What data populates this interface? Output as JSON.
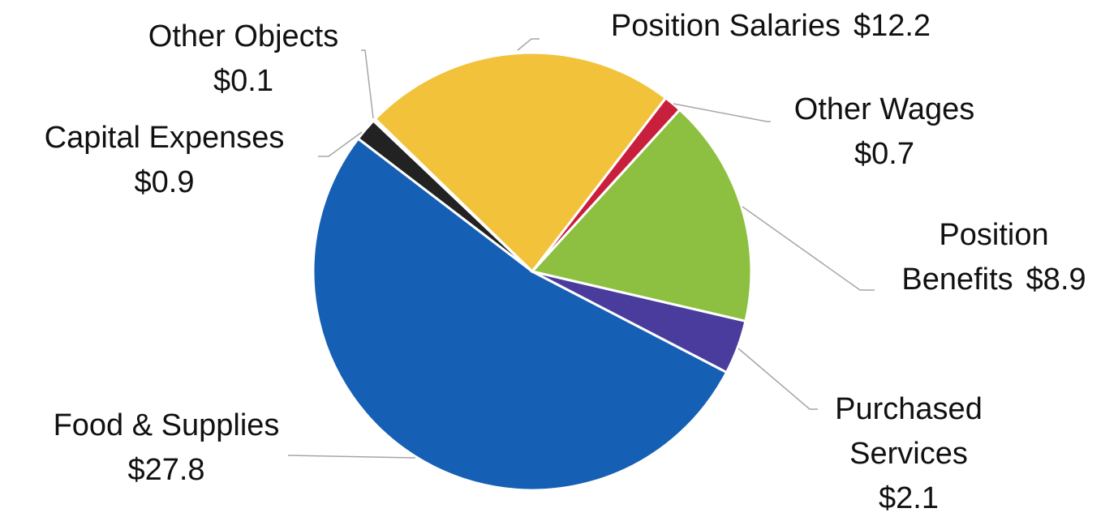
{
  "chart_data": {
    "type": "pie",
    "categories": [
      "Position Salaries",
      "Other Wages",
      "Position Benefits",
      "Purchased Services",
      "Food & Supplies",
      "Capital Expenses",
      "Other Objects"
    ],
    "values": [
      12.2,
      0.7,
      8.9,
      2.1,
      27.8,
      0.9,
      0.1
    ],
    "value_labels": [
      "$12.2",
      "$0.7",
      "$8.9",
      "$2.1",
      "$27.8",
      "$0.9",
      "$0.1"
    ],
    "colors": [
      "#f2c23a",
      "#c8203c",
      "#8dc040",
      "#4a3c9c",
      "#155fb5",
      "#222222",
      "#9a9a9a"
    ]
  }
}
